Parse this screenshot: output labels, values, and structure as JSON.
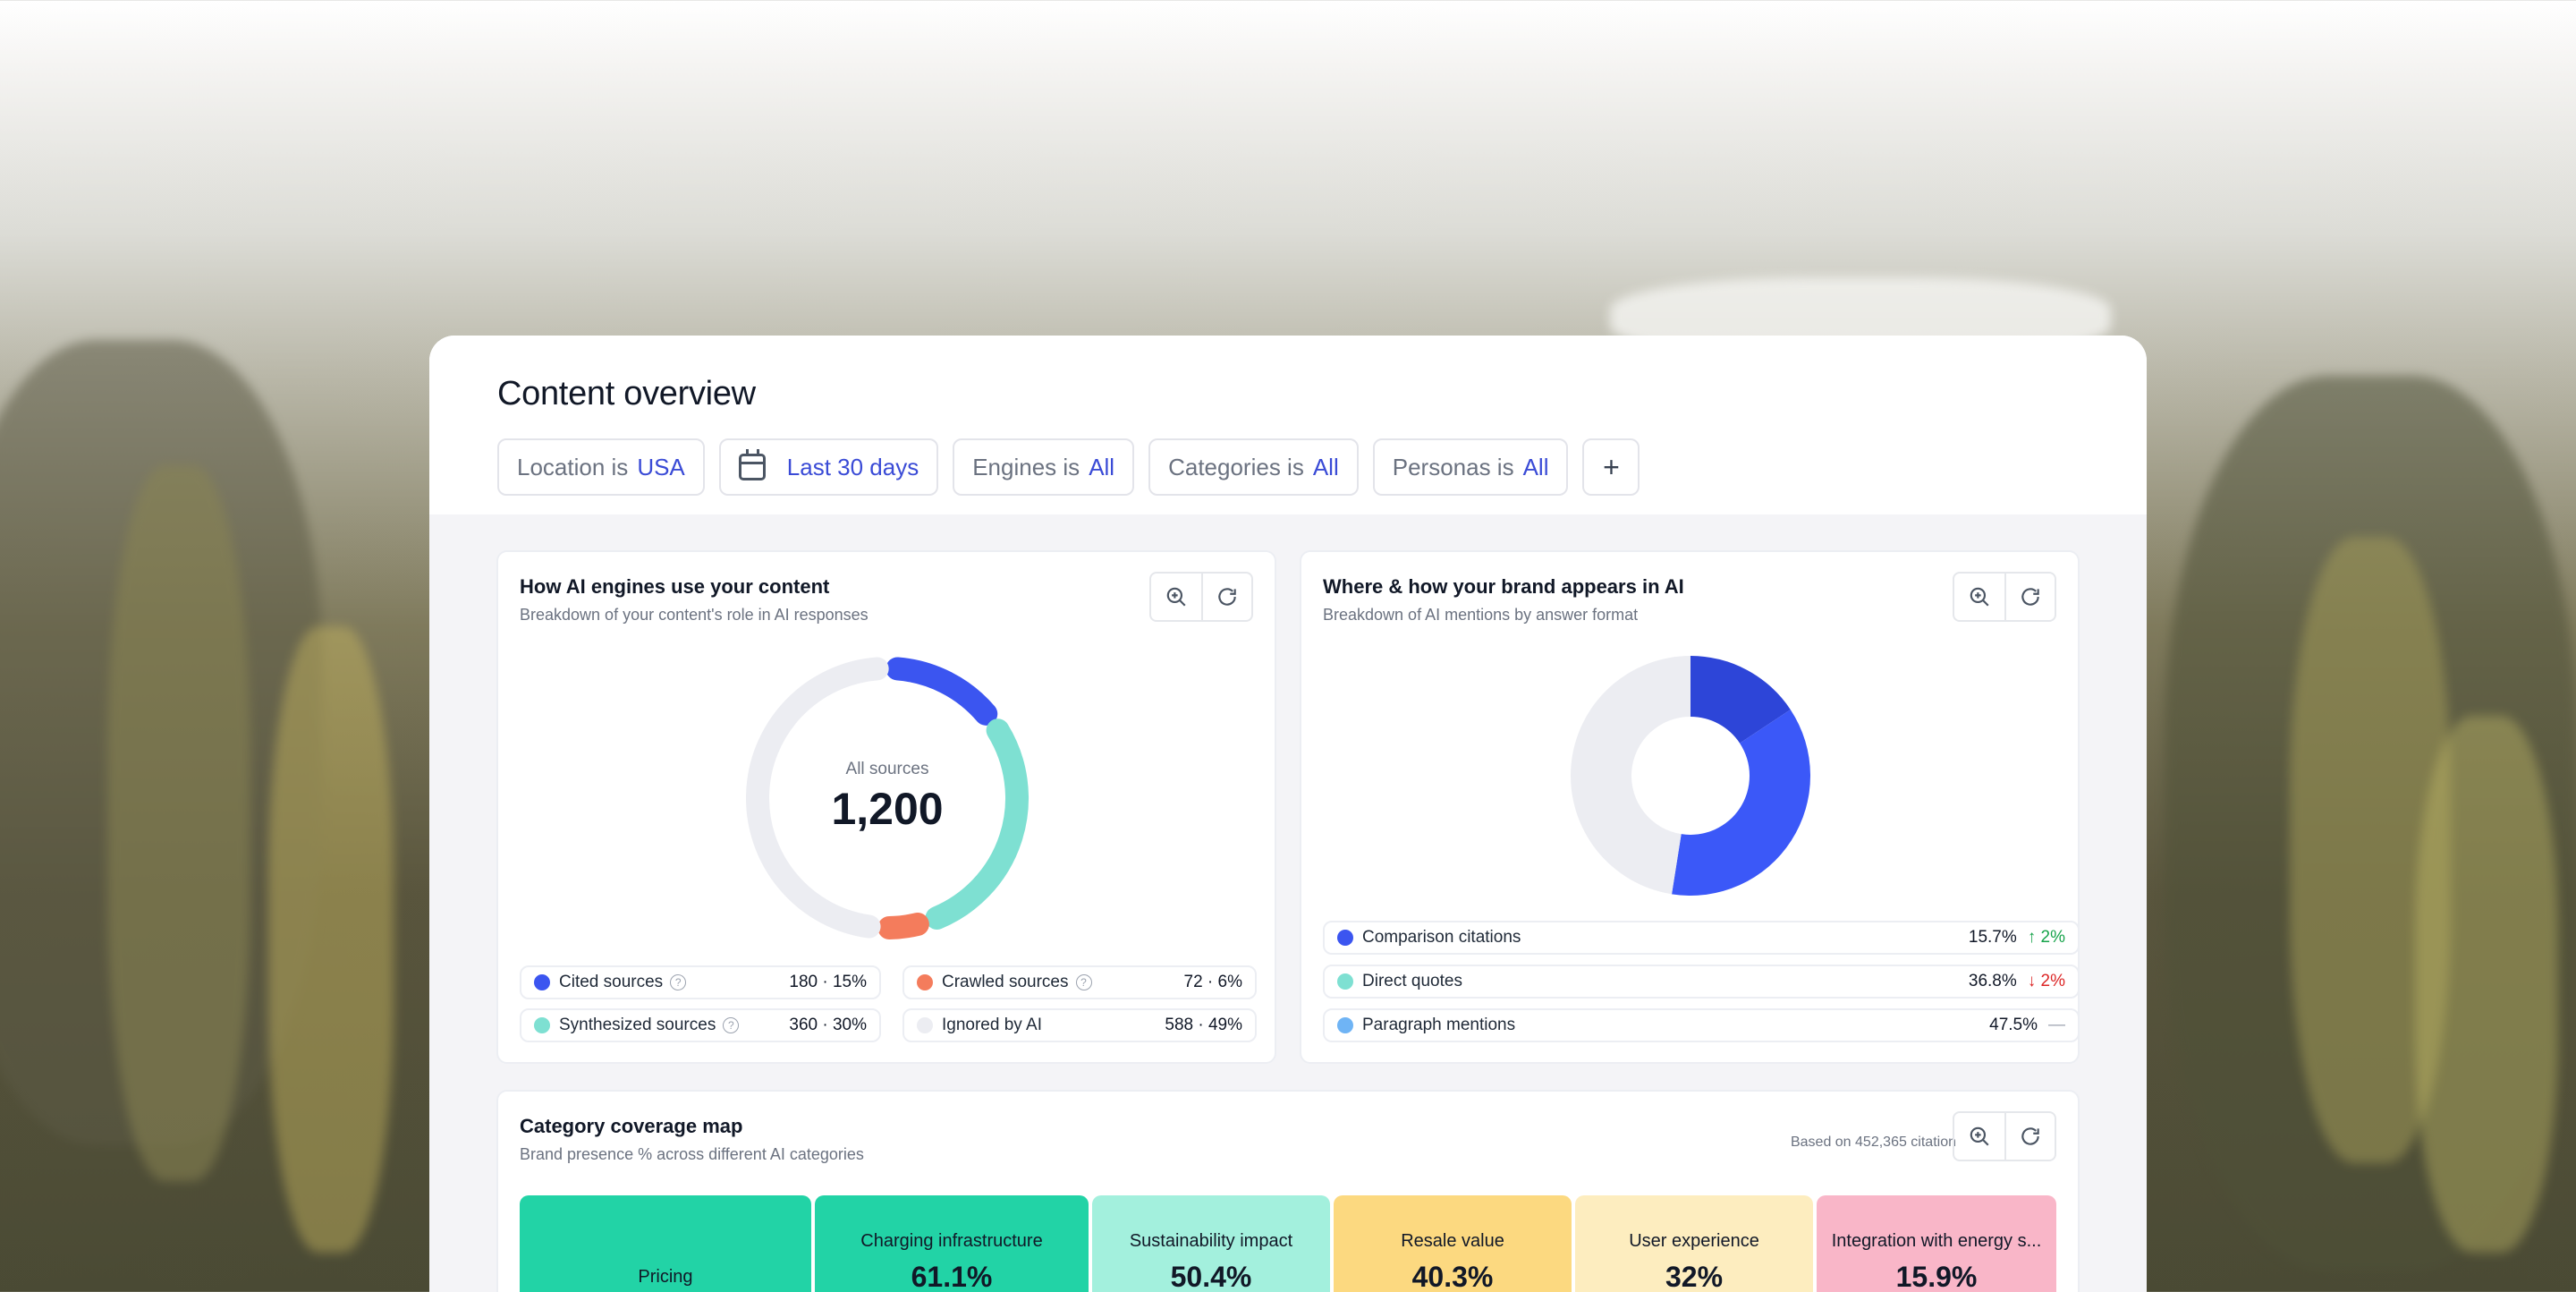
{
  "header": {
    "title": "Content overview",
    "filters": [
      {
        "label": "Location is",
        "value": "USA"
      },
      {
        "label": "",
        "value": "Last 30 days"
      },
      {
        "label": "Engines is",
        "value": "All"
      },
      {
        "label": "Categories is",
        "value": "All"
      },
      {
        "label": "Personas is",
        "value": "All"
      }
    ],
    "add_label": "+"
  },
  "engines_card": {
    "title": "How AI engines use your content",
    "subtitle": "Breakdown of your content's role in AI responses",
    "center_label": "All sources",
    "center_value": "1,200",
    "legend": [
      {
        "name": "Cited sources",
        "value": "180 · 15%",
        "color": "#3b55f0",
        "help": true
      },
      {
        "name": "Crawled sources",
        "value": "72 · 6%",
        "color": "#f47c5c",
        "help": true
      },
      {
        "name": "Synthesized sources",
        "value": "360 · 30%",
        "color": "#7ee0d2",
        "help": true
      },
      {
        "name": "Ignored by AI",
        "value": "588 · 49%",
        "color": "#ecedf2",
        "help": false
      }
    ]
  },
  "brand_card": {
    "title": "Where & how your brand appears in AI",
    "subtitle": "Breakdown of AI mentions by answer format",
    "legend": [
      {
        "name": "Comparison citations",
        "value": "15.7%",
        "trend": "2%",
        "direction": "up",
        "color": "#3b55f0"
      },
      {
        "name": "Direct quotes",
        "value": "36.8%",
        "trend": "2%",
        "direction": "down",
        "color": "#7ee0d2"
      },
      {
        "name": "Paragraph mentions",
        "value": "47.5%",
        "trend": "—",
        "direction": "flat",
        "color": "#6fb4f5"
      }
    ]
  },
  "coverage_card": {
    "title": "Category coverage map",
    "subtitle": "Brand presence % across different AI categories",
    "based_on": "Based on 452,365 citation",
    "tiles": [
      {
        "name": "Pricing",
        "value": "",
        "color": "#22d3a6"
      },
      {
        "name": "Charging infrastructure",
        "value": "61.1%",
        "color": "#22d3a6"
      },
      {
        "name": "Sustainability impact",
        "value": "50.4%",
        "color": "#a3f0dd"
      },
      {
        "name": "Resale value",
        "value": "40.3%",
        "color": "#fcd980"
      },
      {
        "name": "User experience",
        "value": "32%",
        "color": "#fdedbf"
      },
      {
        "name": "Integration with energy s...",
        "value": "15.9%",
        "color": "#f9b6c8"
      }
    ]
  },
  "chart_data": [
    {
      "type": "pie",
      "categories": [
        "Cited sources",
        "Synthesized sources",
        "Crawled sources",
        "Ignored by AI"
      ],
      "values": [
        180,
        360,
        72,
        588
      ],
      "percent": [
        15,
        30,
        6,
        49
      ]
    },
    {
      "type": "pie",
      "categories": [
        "Comparison citations",
        "Direct quotes",
        "Paragraph mentions"
      ],
      "values": [
        15.7,
        36.8,
        47.5
      ]
    }
  ],
  "icons": {
    "zoom": "zoom-in-icon",
    "refresh": "refresh-icon",
    "calendar": "calendar-icon",
    "help": "help-icon"
  }
}
